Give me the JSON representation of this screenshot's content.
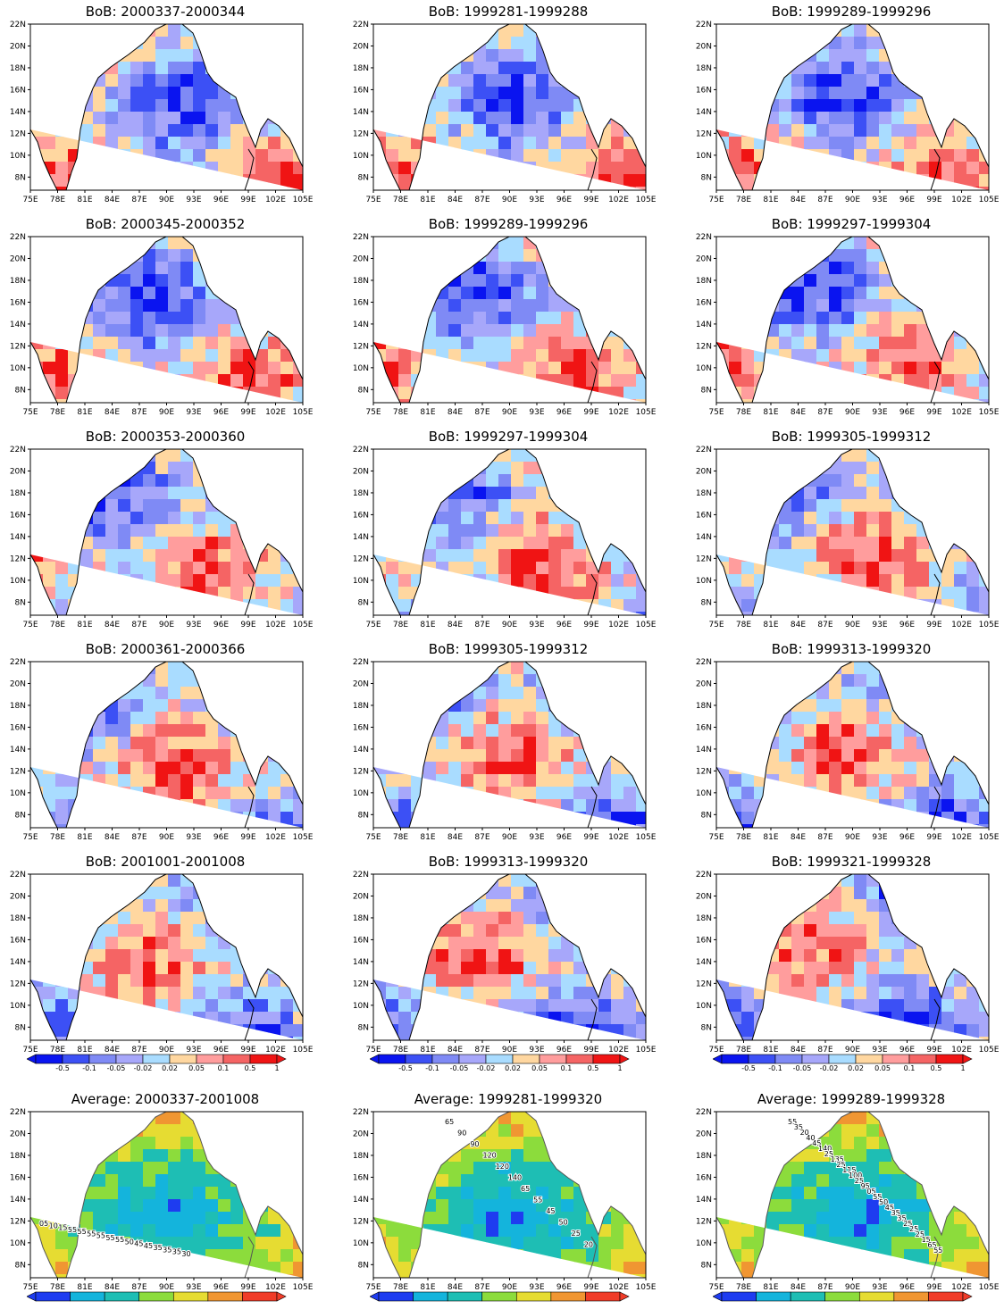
{
  "figure": {
    "lat_ticks": [
      "22N",
      "20N",
      "18N",
      "16N",
      "14N",
      "12N",
      "10N",
      "8N"
    ],
    "lon_ticks": [
      "75E",
      "78E",
      "81E",
      "84E",
      "87E",
      "90E",
      "93E",
      "96E",
      "99E",
      "102E",
      "105E"
    ],
    "colors": {
      "dark_blue": "#0a14f0",
      "blue": "#3c50f5",
      "mid_blue": "#7f8af5",
      "lavender": "#a7a7fa",
      "light_blue": "#a9dcff",
      "beige": "#ffd7a0",
      "pink": "#ff9d9d",
      "salmon": "#f56464",
      "red": "#f01414",
      "avg_cyan": "#14b4dc",
      "avg_teal": "#1ebeb4",
      "avg_green": "#8cdc3c",
      "avg_yellow": "#e6dc32",
      "avg_orange": "#f09632",
      "avg_red": "#f03c28",
      "avg_blue": "#1e3cf0"
    },
    "colorbar_labels": [
      "-0.5",
      "-0.1",
      "-0.05",
      "-0.02",
      "0.02",
      "0.05",
      "0.1",
      "0.5",
      "1"
    ],
    "panels": [
      {
        "title": "BoB: 2000337-2000344",
        "seed": 1
      },
      {
        "title": "BoB: 1999281-1999288",
        "seed": 2
      },
      {
        "title": "BoB: 1999289-1999296",
        "seed": 3
      },
      {
        "title": "BoB: 2000345-2000352",
        "seed": 4
      },
      {
        "title": "BoB: 1999289-1999296",
        "seed": 5
      },
      {
        "title": "BoB: 1999297-1999304",
        "seed": 6
      },
      {
        "title": "BoB: 2000353-2000360",
        "seed": 7
      },
      {
        "title": "BoB: 1999297-1999304",
        "seed": 8
      },
      {
        "title": "BoB: 1999305-1999312",
        "seed": 9
      },
      {
        "title": "BoB: 2000361-2000366",
        "seed": 10
      },
      {
        "title": "BoB: 1999305-1999312",
        "seed": 11
      },
      {
        "title": "BoB: 1999313-1999320",
        "seed": 12
      },
      {
        "title": "BoB: 2001001-2001008",
        "seed": 13
      },
      {
        "title": "BoB: 1999313-1999320",
        "seed": 14
      },
      {
        "title": "BoB: 1999321-1999328",
        "seed": 15
      },
      {
        "title": "Average: 2000337-2001008",
        "seed": 16,
        "average": true,
        "contour_labels": [
          "05",
          "10",
          "15",
          "55",
          "55",
          "55",
          "55",
          "55",
          "55",
          "50",
          "45",
          "45",
          "35",
          "35",
          "35",
          "30"
        ]
      },
      {
        "title": "Average: 1999281-1999320",
        "seed": 17,
        "average": true,
        "contour_labels": [
          "65",
          "90",
          "90",
          "120",
          "120",
          "140",
          "65",
          "55",
          "45",
          "50",
          "25",
          "20"
        ]
      },
      {
        "title": "Average: 1999289-1999328",
        "seed": 18,
        "average": true,
        "contour_labels": [
          "55",
          "35",
          "20",
          "40",
          "45",
          "140",
          "25",
          "135",
          "25",
          "115",
          "100",
          "25",
          "95",
          "05",
          "55",
          "50",
          "45",
          "35",
          "35",
          "25",
          "25",
          "25",
          "15",
          "65",
          "55"
        ]
      }
    ]
  }
}
